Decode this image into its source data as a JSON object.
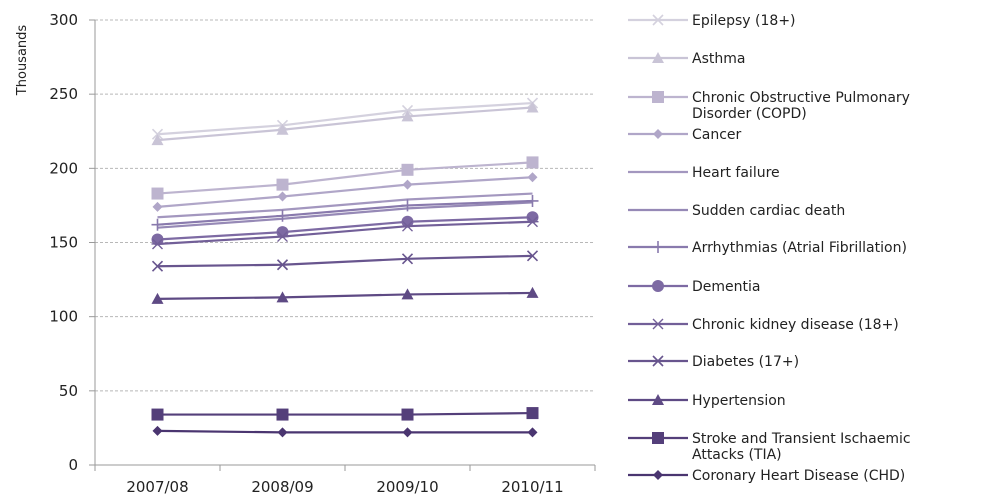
{
  "chart_data": {
    "type": "line",
    "ylabel": "Thousands",
    "ylim": [
      0,
      300
    ],
    "yticks": [
      0,
      50,
      100,
      150,
      200,
      250,
      300
    ],
    "grid": true,
    "legend_position": "right",
    "categories": [
      "2007/08",
      "2008/09",
      "2009/10",
      "2010/11"
    ],
    "series": [
      {
        "name": "Epilepsy (18+)",
        "marker": "x",
        "color": "#d4d1de",
        "values": [
          223,
          229,
          239,
          244
        ]
      },
      {
        "name": "Asthma",
        "marker": "triangle",
        "color": "#c9c4d6",
        "values": [
          219,
          226,
          235,
          241
        ]
      },
      {
        "name_lines": [
          "Chronic Obstructive Pulmonary",
          "Disorder (COPD)"
        ],
        "marker": "square",
        "color": "#bdb4cf",
        "values": [
          183,
          189,
          199,
          204
        ]
      },
      {
        "name": "Cancer",
        "marker": "diamond",
        "color": "#b0a6c8",
        "values": [
          174,
          181,
          189,
          194
        ]
      },
      {
        "name": "Heart failure",
        "marker": "none",
        "color": "#a397bf",
        "values": [
          167,
          172,
          179,
          183
        ]
      },
      {
        "name": "Sudden cardiac death",
        "marker": "none",
        "color": "#9689b6",
        "values": [
          160,
          166,
          173,
          177
        ]
      },
      {
        "name": "Arrhythmias (Atrial Fibrillation)",
        "marker": "plus",
        "color": "#897aad",
        "values": [
          162,
          168,
          175,
          178
        ]
      },
      {
        "name": "Dementia",
        "marker": "circle",
        "color": "#7d6aa3",
        "values": [
          152,
          157,
          164,
          167
        ]
      },
      {
        "name": "Chronic kidney disease (18+)",
        "marker": "star",
        "color": "#725f98",
        "values": [
          149,
          154,
          161,
          164
        ]
      },
      {
        "name": "Diabetes (17+)",
        "marker": "x",
        "color": "#68558e",
        "values": [
          134,
          135,
          139,
          141
        ]
      },
      {
        "name": "Hypertension",
        "marker": "triangle",
        "color": "#5e4a84",
        "values": [
          112,
          113,
          115,
          116
        ]
      },
      {
        "name_lines": [
          "Stroke and Transient Ischaemic",
          "Attacks (TIA)"
        ],
        "marker": "square",
        "color": "#543f7a",
        "values": [
          34,
          34,
          34,
          35
        ]
      },
      {
        "name": "Coronary Heart Disease (CHD)",
        "marker": "diamond",
        "color": "#4a3570",
        "values": [
          23,
          22,
          22,
          22
        ]
      }
    ]
  }
}
